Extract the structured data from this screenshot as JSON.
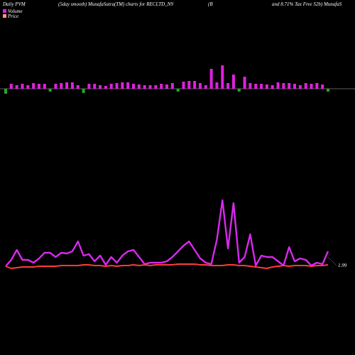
{
  "chart_data": {
    "type": "pvm",
    "header": [
      "Daily PVM",
      "(5day smooth) MunafaSutra(TM) charts for RECLTD_N9",
      "(B",
      "and 8.71% Tax Free  S2b) MunafaS"
    ],
    "series": [
      {
        "name": "Volume",
        "color": "#e020e0",
        "values": [
          7,
          7,
          5,
          7,
          5,
          8,
          7,
          7,
          4,
          7,
          8,
          9,
          9,
          5,
          6,
          7,
          7,
          5,
          4,
          7,
          8,
          9,
          9,
          7,
          6,
          5,
          5,
          5,
          7,
          6,
          8,
          4,
          10,
          11,
          11,
          8,
          5,
          28,
          9,
          33,
          8,
          20,
          4,
          17,
          8,
          7,
          7,
          6,
          5,
          9,
          8,
          8,
          7,
          5,
          8,
          7,
          8,
          6,
          4
        ],
        "bar_colors": [
          "#22aa22",
          "#e020e0",
          "#e020e0",
          "#e020e0",
          "#e020e0",
          "#e020e0",
          "#e020e0",
          "#e020e0",
          "#22aa22",
          "#e020e0",
          "#e020e0",
          "#e020e0",
          "#e020e0",
          "#e020e0",
          "#22aa22",
          "#e020e0",
          "#e020e0",
          "#e020e0",
          "#e020e0",
          "#e020e0",
          "#e020e0",
          "#e020e0",
          "#e020e0",
          "#e020e0",
          "#e020e0",
          "#e020e0",
          "#e020e0",
          "#e020e0",
          "#e020e0",
          "#e020e0",
          "#e020e0",
          "#22aa22",
          "#e020e0",
          "#e020e0",
          "#e020e0",
          "#e020e0",
          "#e020e0",
          "#e020e0",
          "#e020e0",
          "#e020e0",
          "#e020e0",
          "#e020e0",
          "#22aa22",
          "#e020e0",
          "#e020e0",
          "#e020e0",
          "#e020e0",
          "#e020e0",
          "#e020e0",
          "#e020e0",
          "#e020e0",
          "#e020e0",
          "#e020e0",
          "#e020e0",
          "#e020e0",
          "#e020e0",
          "#e020e0",
          "#e020e0",
          "#22aa22"
        ]
      },
      {
        "name": "Price",
        "color": "#ff3b3b",
        "values": [
          3,
          0,
          1,
          2,
          2,
          2,
          3,
          3,
          3,
          3,
          4,
          4,
          4,
          4,
          5,
          5,
          4,
          4,
          3,
          4,
          3,
          4,
          4,
          5,
          4,
          5,
          4,
          5,
          5,
          5,
          5,
          6,
          6,
          6,
          6,
          5,
          5,
          4,
          4,
          4,
          5,
          5,
          4,
          4,
          3,
          2,
          1,
          0,
          2,
          3,
          4,
          3,
          4,
          4,
          4,
          3,
          4,
          4,
          5
        ]
      },
      {
        "color": "#cc33ff",
        "values": [
          3,
          12,
          26,
          12,
          12,
          8,
          14,
          22,
          22,
          16,
          22,
          21,
          24,
          38,
          18,
          20,
          10,
          18,
          5,
          16,
          8,
          18,
          24,
          26,
          16,
          6,
          8,
          8,
          8,
          10,
          16,
          24,
          32,
          38,
          26,
          14,
          8,
          6,
          40,
          96,
          28,
          92,
          8,
          16,
          48,
          4,
          18,
          16,
          16,
          10,
          4,
          30,
          10,
          14,
          12,
          4,
          8,
          6,
          24
        ]
      }
    ],
    "last_label": "1.99"
  }
}
